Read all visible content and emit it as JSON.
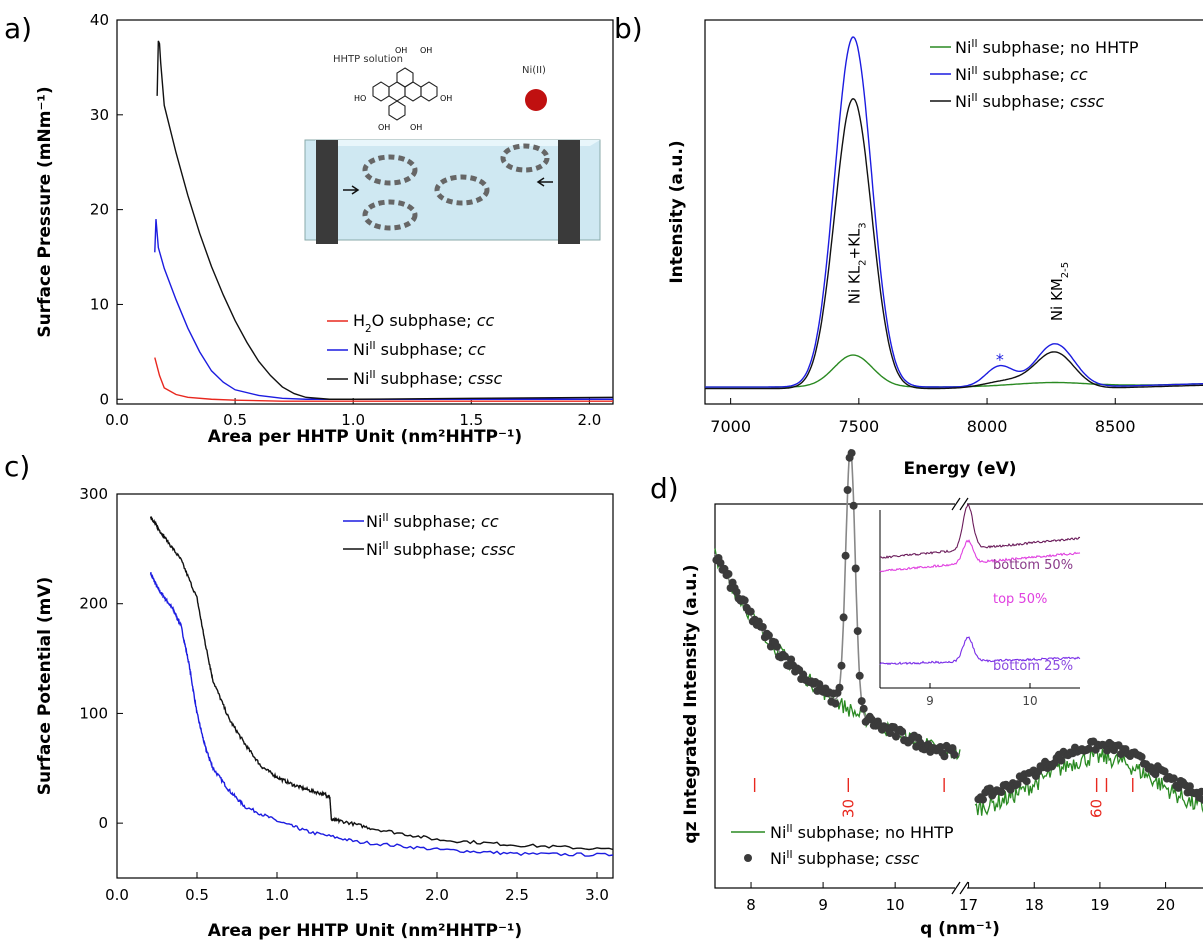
{
  "panel_letters": [
    "a)",
    "b)",
    "c)",
    "d)"
  ],
  "colors": {
    "red": "#e8281f",
    "blue": "#1c1ce0",
    "black": "#111111",
    "green": "#2a8a22",
    "grey_line": "#888888",
    "dots": "#3b3b3b",
    "tick_red": "#e8281f",
    "inset_dark": "#6a1b5a",
    "inset_magenta": "#e040e0",
    "inset_violet": "#7a2ee8",
    "inset_dark_label": "#8a3a8a",
    "inset_magenta_label": "#e040e0",
    "inset_violet_label": "#8a4ae0"
  },
  "chart_data": [
    {
      "id": "a",
      "type": "line",
      "xlabel": "Area per HHTP Unit (nm²HHTP⁻¹)",
      "ylabel": "Surface Pressure (mNm⁻¹)",
      "xlim": [
        0.0,
        2.1
      ],
      "ylim": [
        -0.5,
        40
      ],
      "xticks": [
        "0.0",
        "0.5",
        "1.0",
        "1.5",
        "2.0"
      ],
      "yticks": [
        "0",
        "10",
        "20",
        "30",
        "40"
      ],
      "legend": [
        {
          "base": "H",
          "sub": "2",
          "mid": "O subphase; ",
          "ital": "cc",
          "color": "red"
        },
        {
          "base": "Ni",
          "sup": "II",
          "mid": " subphase; ",
          "ital": "cc",
          "color": "blue"
        },
        {
          "base": "Ni",
          "sup": "II",
          "mid": " subphase; ",
          "ital": "cssc",
          "color": "black"
        }
      ],
      "series": [
        {
          "color": "red",
          "x": [
            0.16,
            0.18,
            0.2,
            0.25,
            0.3,
            0.4,
            0.5,
            0.7,
            1.0,
            1.5,
            2.1
          ],
          "y": [
            4.4,
            2.5,
            1.2,
            0.5,
            0.2,
            0.0,
            -0.1,
            -0.2,
            -0.2,
            -0.2,
            -0.2
          ]
        },
        {
          "color": "blue",
          "x": [
            0.16,
            0.165,
            0.17,
            0.175,
            0.2,
            0.25,
            0.3,
            0.35,
            0.4,
            0.45,
            0.5,
            0.6,
            0.7,
            0.8,
            1.0,
            1.5,
            2.1
          ],
          "y": [
            15.5,
            19.0,
            17.5,
            16.0,
            13.8,
            10.5,
            7.5,
            5.0,
            3.0,
            1.8,
            1.0,
            0.4,
            0.1,
            0.0,
            0.0,
            0.0,
            0.0
          ]
        },
        {
          "color": "black",
          "x": [
            0.17,
            0.175,
            0.18,
            0.185,
            0.2,
            0.25,
            0.3,
            0.35,
            0.4,
            0.45,
            0.5,
            0.55,
            0.6,
            0.65,
            0.7,
            0.75,
            0.8,
            0.9,
            1.0,
            1.5,
            2.1
          ],
          "y": [
            32.0,
            37.8,
            37.5,
            35.5,
            31.0,
            26.0,
            21.5,
            17.5,
            14.0,
            11.0,
            8.3,
            6.0,
            4.0,
            2.5,
            1.3,
            0.6,
            0.2,
            0.0,
            0.0,
            0.1,
            0.2
          ]
        }
      ],
      "inset": {
        "solution_label": "HHTP solution",
        "metal_label": "Ni(II)",
        "oh": "OH",
        "ho": "HO"
      }
    },
    {
      "id": "b",
      "type": "line",
      "xlabel": "Energy (eV)",
      "ylabel": "Intensity (a.u.)",
      "xlim": [
        6900,
        8850
      ],
      "ylim": [
        -0.02,
        1.0
      ],
      "xticks": [
        "7000",
        "7500",
        "8000",
        "8500"
      ],
      "yticks": [],
      "legend": [
        {
          "base": "Ni",
          "sup": "II",
          "mid": " subphase; no HHTP",
          "ital": "",
          "color": "green"
        },
        {
          "base": "Ni",
          "sup": "II",
          "mid": " subphase; ",
          "ital": "cc",
          "color": "blue"
        },
        {
          "base": "Ni",
          "sup": "II",
          "mid": " subphase; ",
          "ital": "cssc",
          "color": "black"
        }
      ],
      "peak_labels": [
        {
          "base": "Ni KL",
          "s1": "2",
          "mid": "+KL",
          "s2": "3",
          "x": 7475
        },
        {
          "base": "Ni KM",
          "s1": "2-5",
          "mid": "",
          "s2": "",
          "x": 8265
        }
      ],
      "asterisk": "*",
      "series": [
        {
          "color": "green",
          "peaks": [
            [
              7478,
              0.085,
              75
            ],
            [
              8265,
              0.012,
              160
            ]
          ]
        },
        {
          "color": "blue",
          "peaks": [
            [
              7478,
              0.93,
              72
            ],
            [
              8050,
              0.055,
              55
            ],
            [
              8265,
              0.115,
              75
            ]
          ]
        },
        {
          "color": "black",
          "peaks": [
            [
              7478,
              0.77,
              72
            ],
            [
              8265,
              0.095,
              75
            ],
            [
              8080,
              0.02,
              90
            ]
          ]
        }
      ]
    },
    {
      "id": "c",
      "type": "line",
      "xlabel": "Area per HHTP Unit (nm²HHTP⁻¹)",
      "ylabel": "Surface Potential (mV)",
      "xlim": [
        0.0,
        3.1
      ],
      "ylim": [
        -50,
        300
      ],
      "xticks": [
        "0.0",
        "0.5",
        "1.0",
        "1.5",
        "2.0",
        "2.5",
        "3.0"
      ],
      "yticks": [
        "0",
        "100",
        "200",
        "300"
      ],
      "legend": [
        {
          "base": "Ni",
          "sup": "II",
          "mid": " subphase; ",
          "ital": "cc",
          "color": "blue"
        },
        {
          "base": "Ni",
          "sup": "II",
          "mid": " subphase; ",
          "ital": "cssc",
          "color": "black"
        }
      ],
      "series": [
        {
          "color": "blue",
          "x": [
            0.21,
            0.25,
            0.3,
            0.35,
            0.4,
            0.45,
            0.5,
            0.55,
            0.6,
            0.7,
            0.8,
            1.0,
            1.2,
            1.5,
            2.0,
            2.5,
            3.1
          ],
          "y": [
            228,
            215,
            205,
            195,
            180,
            145,
            100,
            70,
            50,
            30,
            15,
            2,
            -8,
            -17,
            -24,
            -28,
            -29
          ]
        },
        {
          "color": "black",
          "x": [
            0.21,
            0.25,
            0.3,
            0.4,
            0.5,
            0.55,
            0.6,
            0.7,
            0.8,
            0.9,
            1.0,
            1.1,
            1.2,
            1.3,
            1.33,
            1.34,
            1.4,
            1.6,
            2.0,
            2.5,
            3.1
          ],
          "y": [
            280,
            270,
            260,
            240,
            205,
            165,
            130,
            95,
            72,
            52,
            42,
            35,
            30,
            26,
            24,
            3,
            2,
            -5,
            -15,
            -20,
            -24
          ]
        }
      ]
    },
    {
      "id": "d",
      "type": "scatter",
      "xlabel": "q (nm⁻¹)",
      "ylabel": "qz Integrated Intensity (a.u.)",
      "broken_axis": true,
      "segments": [
        {
          "xlim": [
            7.5,
            10.9
          ],
          "xticks": [
            "8",
            "9",
            "10"
          ]
        },
        {
          "xlim": [
            16.9,
            20.6
          ],
          "xticks": [
            "17",
            "18",
            "19",
            "20"
          ]
        }
      ],
      "ylim": [
        0,
        1.0
      ],
      "legend": [
        {
          "base": "Ni",
          "sup": "II",
          "mid": " subphase; no HHTP",
          "ital": "",
          "color": "green",
          "kind": "line"
        },
        {
          "base": "Ni",
          "sup": "II",
          "mid": " subphase; ",
          "ital": "cssc",
          "color": "dots",
          "kind": "dot"
        }
      ],
      "bragg_ticks": [
        8.05,
        9.35,
        10.68,
        18.95,
        19.1,
        19.5
      ],
      "bragg_labels": [
        {
          "text": "30",
          "q": 9.35
        },
        {
          "text": "60",
          "q": 18.95
        }
      ],
      "inset": {
        "xticks": [
          "9",
          "10"
        ],
        "labels": [
          "bottom 50%",
          "top 50%",
          "bottom 25%"
        ]
      }
    }
  ]
}
